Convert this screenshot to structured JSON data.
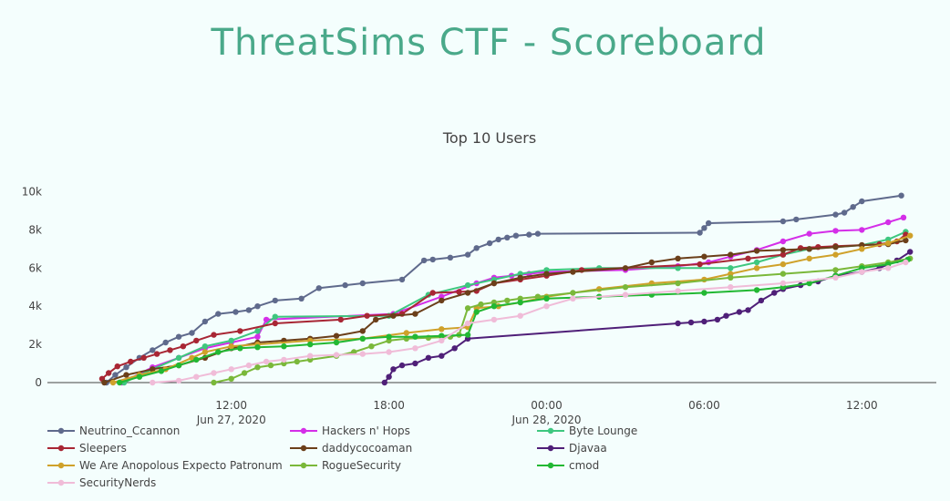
{
  "page": {
    "title": "ThreatSims CTF - Scoreboard"
  },
  "chart_data": {
    "type": "line",
    "title": "Top 10 Users",
    "xlabel": "",
    "ylabel": "",
    "ylim": [
      0,
      10500
    ],
    "xlim": [
      "2020-06-27 05:00",
      "2020-06-28 14:50"
    ],
    "grid": false,
    "legend_position": "bottom",
    "x_ticks": [
      {
        "label": "12:00",
        "sublabel": "Jun 27, 2020",
        "t": "2020-06-27 12:00"
      },
      {
        "label": "18:00",
        "sublabel": "",
        "t": "2020-06-27 18:00"
      },
      {
        "label": "00:00",
        "sublabel": "Jun 28, 2020",
        "t": "2020-06-28 00:00"
      },
      {
        "label": "06:00",
        "sublabel": "",
        "t": "2020-06-28 06:00"
      },
      {
        "label": "12:00",
        "sublabel": "",
        "t": "2020-06-28 12:00"
      }
    ],
    "y_ticks": [
      {
        "label": "0",
        "v": 0
      },
      {
        "label": "2k",
        "v": 2000
      },
      {
        "label": "4k",
        "v": 4000
      },
      {
        "label": "6k",
        "v": 6000
      },
      {
        "label": "8k",
        "v": 8000
      },
      {
        "label": "10k",
        "v": 10000
      }
    ],
    "series": [
      {
        "name": "Neutrino_Ccannon",
        "color": "#5f6a8c",
        "x": [
          "2020-06-27 07:15",
          "2020-06-27 07:35",
          "2020-06-27 08:00",
          "2020-06-27 08:30",
          "2020-06-27 09:00",
          "2020-06-27 09:30",
          "2020-06-27 10:00",
          "2020-06-27 10:30",
          "2020-06-27 11:00",
          "2020-06-27 11:30",
          "2020-06-27 12:10",
          "2020-06-27 12:40",
          "2020-06-27 13:00",
          "2020-06-27 13:40",
          "2020-06-27 14:40",
          "2020-06-27 15:20",
          "2020-06-27 16:20",
          "2020-06-27 17:00",
          "2020-06-27 18:30",
          "2020-06-27 19:20",
          "2020-06-27 19:40",
          "2020-06-27 20:20",
          "2020-06-27 21:00",
          "2020-06-27 21:20",
          "2020-06-27 21:50",
          "2020-06-27 22:10",
          "2020-06-27 22:30",
          "2020-06-27 22:50",
          "2020-06-27 23:20",
          "2020-06-27 23:40",
          "2020-06-28 05:50",
          "2020-06-28 06:00",
          "2020-06-28 06:10",
          "2020-06-28 09:00",
          "2020-06-28 09:30",
          "2020-06-28 11:00",
          "2020-06-28 11:20",
          "2020-06-28 11:40",
          "2020-06-28 12:00",
          "2020-06-28 13:30"
        ],
        "y": [
          0,
          400,
          800,
          1300,
          1700,
          2100,
          2400,
          2600,
          3200,
          3600,
          3700,
          3800,
          4000,
          4300,
          4400,
          4950,
          5100,
          5200,
          5400,
          6400,
          6450,
          6550,
          6700,
          7050,
          7300,
          7500,
          7600,
          7700,
          7750,
          7800,
          7850,
          8100,
          8350,
          8450,
          8550,
          8800,
          8900,
          9200,
          9500,
          9800
        ]
      },
      {
        "name": "Hackers n' Hops",
        "color": "#d42ee8",
        "x": [
          "2020-06-27 07:50",
          "2020-06-27 09:00",
          "2020-06-27 10:00",
          "2020-06-27 11:00",
          "2020-06-27 12:00",
          "2020-06-27 13:00",
          "2020-06-27 13:20",
          "2020-06-27 18:10",
          "2020-06-27 20:00",
          "2020-06-27 21:20",
          "2020-06-27 22:00",
          "2020-06-27 22:40",
          "2020-06-27 23:20",
          "2020-06-28 00:00",
          "2020-06-28 03:00",
          "2020-06-28 05:00",
          "2020-06-28 06:10",
          "2020-06-28 07:00",
          "2020-06-28 08:00",
          "2020-06-28 09:00",
          "2020-06-28 10:00",
          "2020-06-28 11:00",
          "2020-06-28 12:00",
          "2020-06-28 13:00",
          "2020-06-28 13:35"
        ],
        "y": [
          0,
          800,
          1300,
          1800,
          2100,
          2400,
          3300,
          3600,
          4500,
          5200,
          5500,
          5600,
          5700,
          5800,
          5900,
          6100,
          6300,
          6600,
          6950,
          7400,
          7800,
          7950,
          8000,
          8400,
          8650
        ]
      },
      {
        "name": "Byte Lounge",
        "color": "#3ec77f",
        "x": [
          "2020-06-27 07:55",
          "2020-06-27 09:00",
          "2020-06-27 10:00",
          "2020-06-27 11:00",
          "2020-06-27 12:00",
          "2020-06-27 13:00",
          "2020-06-27 13:40",
          "2020-06-27 18:00",
          "2020-06-27 19:30",
          "2020-06-27 21:00",
          "2020-06-27 22:00",
          "2020-06-27 23:00",
          "2020-06-28 00:00",
          "2020-06-28 02:00",
          "2020-06-28 05:00",
          "2020-06-28 07:00",
          "2020-06-28 08:00",
          "2020-06-28 09:00",
          "2020-06-28 10:00",
          "2020-06-28 11:00",
          "2020-06-28 12:00",
          "2020-06-28 13:00",
          "2020-06-28 13:40"
        ],
        "y": [
          0,
          700,
          1300,
          1900,
          2200,
          2700,
          3450,
          3500,
          4600,
          5100,
          5400,
          5700,
          5900,
          6000,
          6000,
          6000,
          6300,
          6700,
          7000,
          7100,
          7200,
          7500,
          7900
        ]
      },
      {
        "name": "Sleepers",
        "color": "#a82634",
        "x": [
          "2020-06-27 07:05",
          "2020-06-27 07:20",
          "2020-06-27 07:40",
          "2020-06-27 08:10",
          "2020-06-27 08:40",
          "2020-06-27 09:10",
          "2020-06-27 09:40",
          "2020-06-27 10:10",
          "2020-06-27 10:40",
          "2020-06-27 11:20",
          "2020-06-27 12:20",
          "2020-06-27 13:40",
          "2020-06-27 16:10",
          "2020-06-27 17:10",
          "2020-06-27 18:30",
          "2020-06-27 19:40",
          "2020-06-27 20:40",
          "2020-06-27 21:20",
          "2020-06-27 22:00",
          "2020-06-27 23:00",
          "2020-06-28 00:00",
          "2020-06-28 01:20",
          "2020-06-28 05:50",
          "2020-06-28 07:40",
          "2020-06-28 09:00",
          "2020-06-28 09:40",
          "2020-06-28 10:20",
          "2020-06-28 11:00",
          "2020-06-28 12:00",
          "2020-06-28 12:40",
          "2020-06-28 13:20",
          "2020-06-28 13:40"
        ],
        "y": [
          200,
          500,
          850,
          1100,
          1300,
          1500,
          1700,
          1900,
          2200,
          2500,
          2700,
          3100,
          3300,
          3500,
          3600,
          4700,
          4750,
          4800,
          5200,
          5400,
          5600,
          5900,
          6200,
          6500,
          6700,
          7050,
          7100,
          7150,
          7200,
          7250,
          7400,
          7750
        ]
      },
      {
        "name": "daddycocoaman",
        "color": "#6b3f1a",
        "x": [
          "2020-06-27 07:10",
          "2020-06-27 08:00",
          "2020-06-27 09:00",
          "2020-06-27 10:00",
          "2020-06-27 11:00",
          "2020-06-27 12:00",
          "2020-06-27 13:00",
          "2020-06-27 14:00",
          "2020-06-27 15:00",
          "2020-06-27 16:00",
          "2020-06-27 17:00",
          "2020-06-27 17:30",
          "2020-06-27 18:10",
          "2020-06-27 19:00",
          "2020-06-27 20:00",
          "2020-06-27 21:00",
          "2020-06-27 22:00",
          "2020-06-27 23:00",
          "2020-06-28 00:00",
          "2020-06-28 01:00",
          "2020-06-28 03:00",
          "2020-06-28 04:00",
          "2020-06-28 05:00",
          "2020-06-28 06:00",
          "2020-06-28 07:00",
          "2020-06-28 08:00",
          "2020-06-28 09:00",
          "2020-06-28 10:00",
          "2020-06-28 11:00",
          "2020-06-28 12:00",
          "2020-06-28 13:00",
          "2020-06-28 13:40"
        ],
        "y": [
          0,
          400,
          700,
          900,
          1300,
          1800,
          2100,
          2200,
          2300,
          2450,
          2700,
          3300,
          3500,
          3600,
          4300,
          4700,
          5200,
          5500,
          5700,
          5800,
          6000,
          6300,
          6500,
          6600,
          6700,
          6900,
          6950,
          7000,
          7100,
          7200,
          7250,
          7450
        ]
      },
      {
        "name": "Djavaa",
        "color": "#4f1f78",
        "x": [
          "2020-06-27 17:50",
          "2020-06-27 18:00",
          "2020-06-27 18:10",
          "2020-06-27 18:30",
          "2020-06-27 19:00",
          "2020-06-27 19:30",
          "2020-06-27 20:00",
          "2020-06-27 20:30",
          "2020-06-27 21:00",
          "2020-06-28 05:00",
          "2020-06-28 05:30",
          "2020-06-28 06:00",
          "2020-06-28 06:30",
          "2020-06-28 06:50",
          "2020-06-28 07:20",
          "2020-06-28 07:40",
          "2020-06-28 08:10",
          "2020-06-28 08:40",
          "2020-06-28 09:00",
          "2020-06-28 09:40",
          "2020-06-28 10:20",
          "2020-06-28 11:00",
          "2020-06-28 12:00",
          "2020-06-28 12:40",
          "2020-06-28 13:20",
          "2020-06-28 13:50"
        ],
        "y": [
          0,
          300,
          700,
          900,
          1000,
          1300,
          1400,
          1800,
          2300,
          3100,
          3150,
          3200,
          3300,
          3500,
          3700,
          3800,
          4300,
          4700,
          4900,
          5100,
          5300,
          5600,
          5800,
          6000,
          6400,
          6850
        ]
      },
      {
        "name": "We Are Anopolous Expecto Patronum",
        "color": "#cfa12a",
        "x": [
          "2020-06-27 07:30",
          "2020-06-27 08:30",
          "2020-06-27 09:30",
          "2020-06-27 10:30",
          "2020-06-27 11:00",
          "2020-06-27 12:00",
          "2020-06-27 13:00",
          "2020-06-27 15:00",
          "2020-06-27 17:00",
          "2020-06-27 18:40",
          "2020-06-27 20:00",
          "2020-06-27 21:00",
          "2020-06-27 21:20",
          "2020-06-27 22:10",
          "2020-06-27 23:00",
          "2020-06-28 00:00",
          "2020-06-28 02:00",
          "2020-06-28 04:00",
          "2020-06-28 06:00",
          "2020-06-28 07:00",
          "2020-06-28 08:00",
          "2020-06-28 09:00",
          "2020-06-28 10:00",
          "2020-06-28 11:00",
          "2020-06-28 12:00",
          "2020-06-28 13:00",
          "2020-06-28 13:50"
        ],
        "y": [
          0,
          400,
          700,
          1300,
          1600,
          1900,
          2000,
          2200,
          2300,
          2600,
          2800,
          2900,
          3900,
          4000,
          4200,
          4500,
          4900,
          5200,
          5400,
          5700,
          6000,
          6200,
          6500,
          6700,
          7000,
          7300,
          7700
        ]
      },
      {
        "name": "RogueSecurity",
        "color": "#7ab83a",
        "x": [
          "2020-06-27 11:20",
          "2020-06-27 12:00",
          "2020-06-27 12:30",
          "2020-06-27 13:00",
          "2020-06-27 13:30",
          "2020-06-27 14:00",
          "2020-06-27 14:30",
          "2020-06-27 15:00",
          "2020-06-27 16:00",
          "2020-06-27 16:40",
          "2020-06-27 17:20",
          "2020-06-27 18:00",
          "2020-06-27 18:40",
          "2020-06-27 19:30",
          "2020-06-27 20:20",
          "2020-06-27 20:40",
          "2020-06-27 21:00",
          "2020-06-27 21:30",
          "2020-06-27 22:00",
          "2020-06-27 22:30",
          "2020-06-27 23:00",
          "2020-06-27 23:40",
          "2020-06-28 01:00",
          "2020-06-28 03:00",
          "2020-06-28 05:00",
          "2020-06-28 07:00",
          "2020-06-28 09:00",
          "2020-06-28 11:00",
          "2020-06-28 12:00",
          "2020-06-28 13:00",
          "2020-06-28 13:50"
        ],
        "y": [
          0,
          200,
          500,
          800,
          900,
          1000,
          1100,
          1200,
          1400,
          1600,
          1900,
          2200,
          2300,
          2350,
          2400,
          2500,
          3900,
          4100,
          4200,
          4300,
          4400,
          4500,
          4700,
          5000,
          5200,
          5500,
          5700,
          5900,
          6100,
          6300,
          6500
        ]
      },
      {
        "name": "cmod",
        "color": "#22b833",
        "x": [
          "2020-06-27 07:45",
          "2020-06-27 08:30",
          "2020-06-27 09:20",
          "2020-06-27 10:00",
          "2020-06-27 10:40",
          "2020-06-27 11:30",
          "2020-06-27 12:20",
          "2020-06-27 13:00",
          "2020-06-27 14:00",
          "2020-06-27 15:00",
          "2020-06-27 16:00",
          "2020-06-27 17:00",
          "2020-06-27 18:00",
          "2020-06-27 19:00",
          "2020-06-27 20:00",
          "2020-06-27 21:00",
          "2020-06-27 21:20",
          "2020-06-27 22:00",
          "2020-06-27 23:00",
          "2020-06-28 00:00",
          "2020-06-28 02:00",
          "2020-06-28 04:00",
          "2020-06-28 06:00",
          "2020-06-28 08:00",
          "2020-06-28 09:00",
          "2020-06-28 10:00",
          "2020-06-28 11:00",
          "2020-06-28 12:00",
          "2020-06-28 13:00",
          "2020-06-28 13:45"
        ],
        "y": [
          0,
          300,
          600,
          900,
          1200,
          1600,
          1800,
          1850,
          1900,
          2000,
          2100,
          2300,
          2400,
          2400,
          2450,
          2500,
          3700,
          4000,
          4200,
          4400,
          4500,
          4600,
          4700,
          4850,
          5000,
          5200,
          5600,
          6000,
          6200,
          6450
        ]
      },
      {
        "name": "SecurityNerds",
        "color": "#f0bcd8",
        "x": [
          "2020-06-27 09:00",
          "2020-06-27 10:00",
          "2020-06-27 10:40",
          "2020-06-27 11:20",
          "2020-06-27 12:00",
          "2020-06-27 12:40",
          "2020-06-27 13:20",
          "2020-06-27 14:00",
          "2020-06-27 15:00",
          "2020-06-27 16:00",
          "2020-06-27 17:00",
          "2020-06-27 18:00",
          "2020-06-27 19:00",
          "2020-06-27 20:00",
          "2020-06-27 21:00",
          "2020-06-27 22:00",
          "2020-06-27 23:00",
          "2020-06-28 00:00",
          "2020-06-28 01:00",
          "2020-06-28 03:00",
          "2020-06-28 05:00",
          "2020-06-28 07:00",
          "2020-06-28 09:00",
          "2020-06-28 11:00",
          "2020-06-28 12:00",
          "2020-06-28 13:00",
          "2020-06-28 13:40"
        ],
        "y": [
          0,
          100,
          300,
          500,
          700,
          900,
          1100,
          1200,
          1400,
          1450,
          1500,
          1600,
          1800,
          2200,
          3100,
          3300,
          3500,
          4000,
          4400,
          4600,
          4800,
          5000,
          5200,
          5500,
          5800,
          6000,
          6300
        ]
      }
    ]
  }
}
